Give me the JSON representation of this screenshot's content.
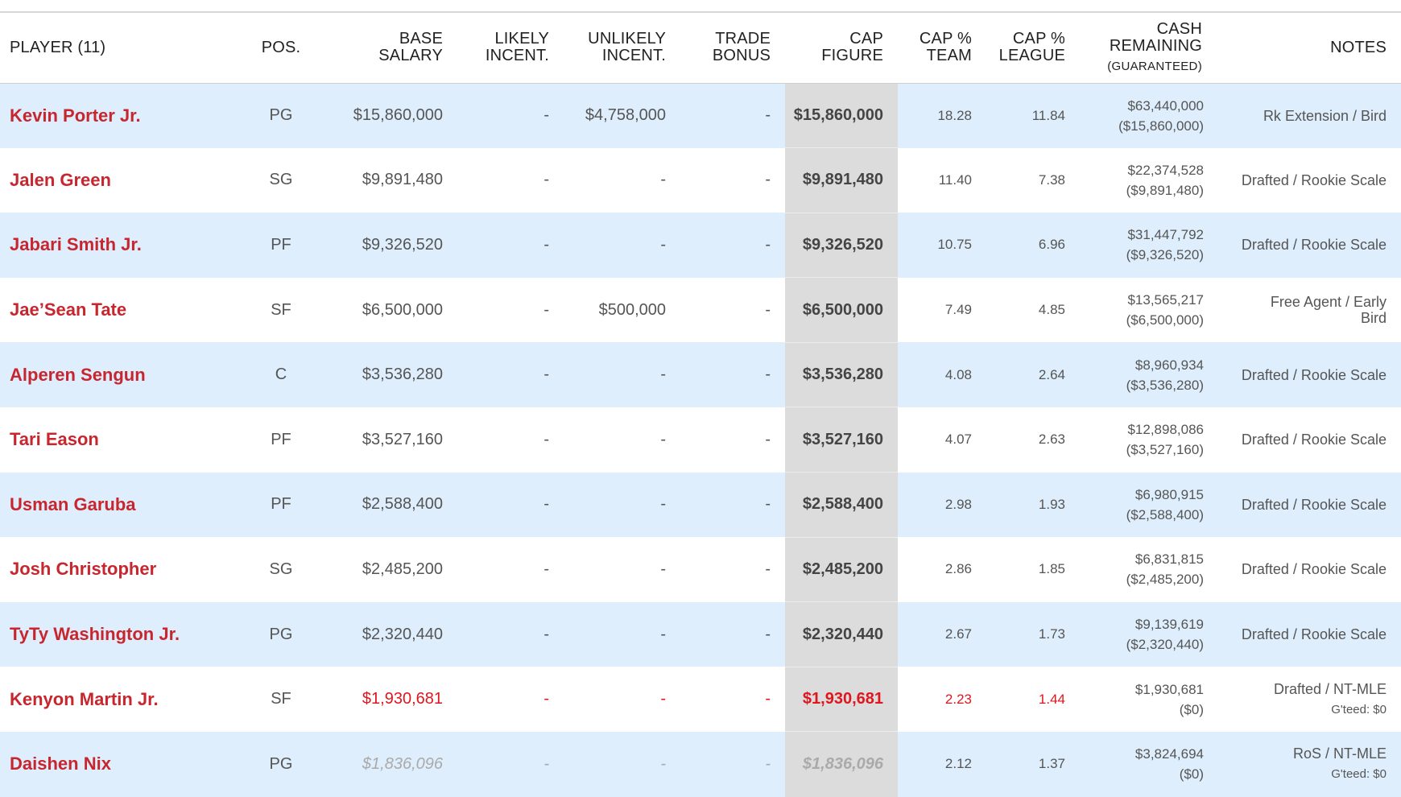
{
  "header": {
    "player": "PLAYER (11)",
    "pos": "POS.",
    "base_salary": [
      "BASE",
      "SALARY"
    ],
    "likely_incent": [
      "LIKELY",
      "INCENT."
    ],
    "unlikely_incent": [
      "UNLIKELY",
      "INCENT."
    ],
    "trade_bonus": [
      "TRADE",
      "BONUS"
    ],
    "cap_figure": [
      "CAP",
      "FIGURE"
    ],
    "cap_pct_team": [
      "CAP %",
      "TEAM"
    ],
    "cap_pct_league": [
      "CAP %",
      "LEAGUE"
    ],
    "cash_remaining": [
      "CASH",
      "REMAINING",
      "(GUARANTEED)"
    ],
    "notes": "NOTES"
  },
  "rows": [
    {
      "name": "Kevin Porter Jr.",
      "pos": "PG",
      "base": "$15,860,000",
      "likely": "-",
      "unlikely": "$4,758,000",
      "trade": "-",
      "cap": "$15,860,000",
      "team_pct": "18.28",
      "league_pct": "11.84",
      "cash": "$63,440,000",
      "cash_g": "($15,860,000)",
      "notes": "Rk Extension / Bird",
      "gteed": ""
    },
    {
      "name": "Jalen Green",
      "pos": "SG",
      "base": "$9,891,480",
      "likely": "-",
      "unlikely": "-",
      "trade": "-",
      "cap": "$9,891,480",
      "team_pct": "11.40",
      "league_pct": "7.38",
      "cash": "$22,374,528",
      "cash_g": "($9,891,480)",
      "notes": "Drafted / Rookie Scale",
      "gteed": ""
    },
    {
      "name": "Jabari Smith Jr.",
      "pos": "PF",
      "base": "$9,326,520",
      "likely": "-",
      "unlikely": "-",
      "trade": "-",
      "cap": "$9,326,520",
      "team_pct": "10.75",
      "league_pct": "6.96",
      "cash": "$31,447,792",
      "cash_g": "($9,326,520)",
      "notes": "Drafted / Rookie Scale",
      "gteed": ""
    },
    {
      "name": "Jae’Sean Tate",
      "pos": "SF",
      "base": "$6,500,000",
      "likely": "-",
      "unlikely": "$500,000",
      "trade": "-",
      "cap": "$6,500,000",
      "team_pct": "7.49",
      "league_pct": "4.85",
      "cash": "$13,565,217",
      "cash_g": "($6,500,000)",
      "notes": "Free Agent / Early Bird",
      "gteed": ""
    },
    {
      "name": "Alperen Sengun",
      "pos": "C",
      "base": "$3,536,280",
      "likely": "-",
      "unlikely": "-",
      "trade": "-",
      "cap": "$3,536,280",
      "team_pct": "4.08",
      "league_pct": "2.64",
      "cash": "$8,960,934",
      "cash_g": "($3,536,280)",
      "notes": "Drafted / Rookie Scale",
      "gteed": ""
    },
    {
      "name": "Tari Eason",
      "pos": "PF",
      "base": "$3,527,160",
      "likely": "-",
      "unlikely": "-",
      "trade": "-",
      "cap": "$3,527,160",
      "team_pct": "4.07",
      "league_pct": "2.63",
      "cash": "$12,898,086",
      "cash_g": "($3,527,160)",
      "notes": "Drafted / Rookie Scale",
      "gteed": ""
    },
    {
      "name": "Usman Garuba",
      "pos": "PF",
      "base": "$2,588,400",
      "likely": "-",
      "unlikely": "-",
      "trade": "-",
      "cap": "$2,588,400",
      "team_pct": "2.98",
      "league_pct": "1.93",
      "cash": "$6,980,915",
      "cash_g": "($2,588,400)",
      "notes": "Drafted / Rookie Scale",
      "gteed": ""
    },
    {
      "name": "Josh Christopher",
      "pos": "SG",
      "base": "$2,485,200",
      "likely": "-",
      "unlikely": "-",
      "trade": "-",
      "cap": "$2,485,200",
      "team_pct": "2.86",
      "league_pct": "1.85",
      "cash": "$6,831,815",
      "cash_g": "($2,485,200)",
      "notes": "Drafted / Rookie Scale",
      "gteed": ""
    },
    {
      "name": "TyTy Washington Jr.",
      "pos": "PG",
      "base": "$2,320,440",
      "likely": "-",
      "unlikely": "-",
      "trade": "-",
      "cap": "$2,320,440",
      "team_pct": "2.67",
      "league_pct": "1.73",
      "cash": "$9,139,619",
      "cash_g": "($2,320,440)",
      "notes": "Drafted / Rookie Scale",
      "gteed": ""
    },
    {
      "name": "Kenyon Martin Jr.",
      "pos": "SF",
      "base": "$1,930,681",
      "likely": "-",
      "unlikely": "-",
      "trade": "-",
      "cap": "$1,930,681",
      "team_pct": "2.23",
      "league_pct": "1.44",
      "cash": "$1,930,681",
      "cash_g": "($0)",
      "notes": "Drafted / NT-MLE",
      "gteed": "G'teed: $0"
    },
    {
      "name": "Daishen Nix",
      "pos": "PG",
      "base": "$1,836,096",
      "likely": "-",
      "unlikely": "-",
      "trade": "-",
      "cap": "$1,836,096",
      "team_pct": "2.12",
      "league_pct": "1.37",
      "cash": "$3,824,694",
      "cash_g": "($0)",
      "notes": "RoS / NT-MLE",
      "gteed": "G'teed: $0"
    }
  ],
  "colors": {
    "player_link": "#c8262e",
    "non_guaranteed_red": "#e0161e",
    "row_stripe": "#deeefc",
    "cap_column": "#dcdcdc"
  }
}
